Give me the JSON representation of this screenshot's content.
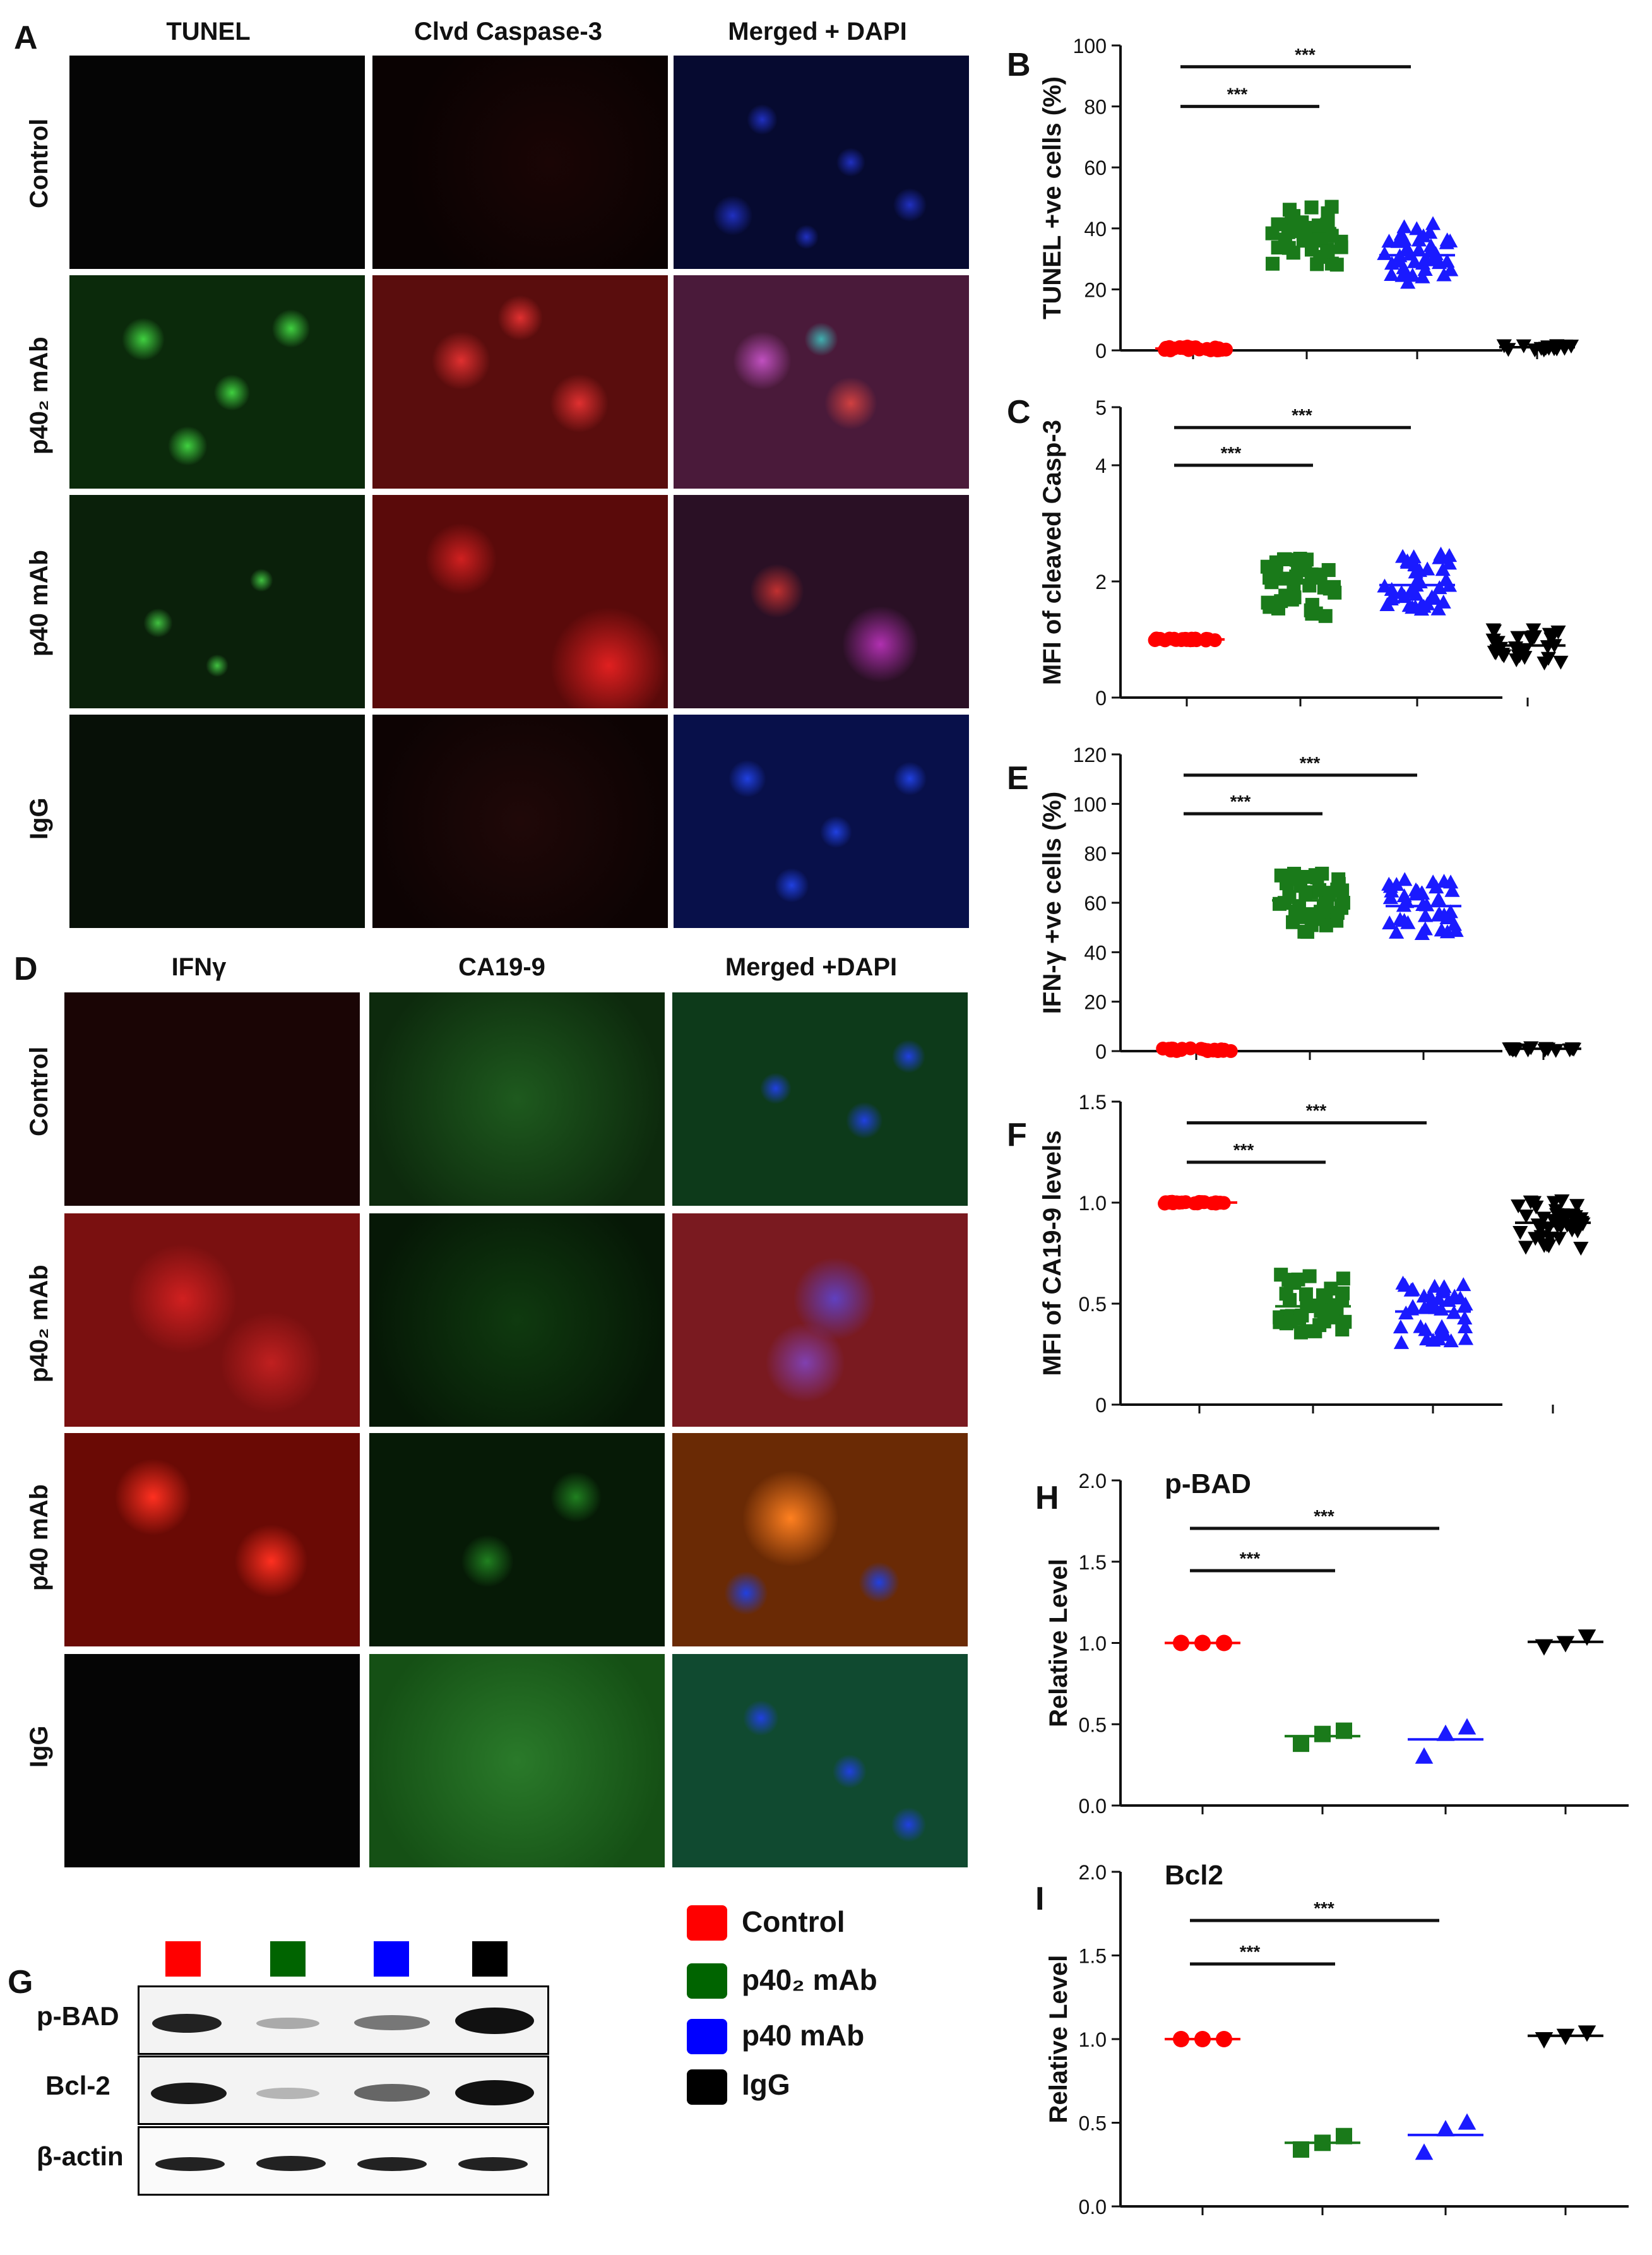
{
  "panels": {
    "A": {
      "letter": "A",
      "columns": [
        "TUNEL",
        "Clvd Caspase-3",
        "Merged + DAPI"
      ],
      "rows": [
        "Control",
        "p40₂ mAb",
        "p40 mAb",
        "IgG"
      ]
    },
    "D": {
      "letter": "D",
      "columns": [
        "IFNγ",
        "CA19-9",
        "Merged +DAPI"
      ],
      "rows": [
        "Control",
        "p40₂ mAb",
        "p40 mAb",
        "IgG"
      ]
    },
    "G": {
      "letter": "G",
      "rows": [
        "p-BAD",
        "Bcl-2",
        "β-actin"
      ],
      "lane_colors": [
        "#ff0000",
        "#006400",
        "#0000ff",
        "#000000"
      ]
    }
  },
  "legend": {
    "items": [
      {
        "label": "Control",
        "color": "#ff0000"
      },
      {
        "label": "p40₂ mAb",
        "color": "#006400"
      },
      {
        "label": "p40 mAb",
        "color": "#0000ff"
      },
      {
        "label": "IgG",
        "color": "#000000"
      }
    ]
  },
  "colors": {
    "control": "#ff0000",
    "p402": "#1a7a1a",
    "p40": "#1a1aff",
    "igg": "#000000"
  },
  "chart_data": [
    {
      "id": "B",
      "letter": "B",
      "type": "scatter",
      "ylabel": "TUNEL  +ve cells (%)",
      "ylim": [
        0,
        100
      ],
      "yticks": [
        "0",
        "20",
        "40",
        "60",
        "80",
        "100"
      ],
      "significance": [
        "***",
        "***"
      ],
      "groups": [
        {
          "mean": 0.5,
          "spread": 1.5,
          "n": 25,
          "marker": "circle"
        },
        {
          "mean": 38,
          "spread": 20,
          "n": 40,
          "marker": "square"
        },
        {
          "mean": 32,
          "spread": 20,
          "n": 40,
          "marker": "triangle-up"
        },
        {
          "mean": 1,
          "spread": 1.5,
          "n": 15,
          "marker": "triangle-down"
        }
      ]
    },
    {
      "id": "C",
      "letter": "C",
      "type": "scatter",
      "ylabel": "MFI of cleaved Casp-3",
      "ylim": [
        0,
        5
      ],
      "yticks": [
        "0",
        "2",
        "4",
        "5"
      ],
      "ytick_values": [
        0,
        2,
        4,
        5
      ],
      "significance": [
        "***",
        "***"
      ],
      "groups": [
        {
          "mean": 1.0,
          "spread": 0.04,
          "n": 25,
          "marker": "circle"
        },
        {
          "mean": 1.9,
          "spread": 1.0,
          "n": 40,
          "marker": "square"
        },
        {
          "mean": 2.0,
          "spread": 1.0,
          "n": 40,
          "marker": "triangle-up"
        },
        {
          "mean": 0.9,
          "spread": 0.6,
          "n": 30,
          "marker": "triangle-down"
        }
      ]
    },
    {
      "id": "E",
      "letter": "E",
      "type": "scatter",
      "ylabel": "IFN-γ +ve cells (%)",
      "ylim": [
        0,
        120
      ],
      "yticks": [
        "0",
        "20",
        "40",
        "60",
        "80",
        "100",
        "120"
      ],
      "significance": [
        "***",
        "***"
      ],
      "groups": [
        {
          "mean": 0.5,
          "spread": 1.5,
          "n": 25,
          "marker": "circle"
        },
        {
          "mean": 60,
          "spread": 24,
          "n": 40,
          "marker": "square"
        },
        {
          "mean": 58,
          "spread": 24,
          "n": 40,
          "marker": "triangle-up"
        },
        {
          "mean": 1,
          "spread": 1.5,
          "n": 15,
          "marker": "triangle-down"
        }
      ]
    },
    {
      "id": "F",
      "letter": "F",
      "type": "scatter",
      "ylabel": "MFI of CA19-9 levels",
      "ylim": [
        0,
        1.5
      ],
      "yticks": [
        "0",
        "0.5",
        "1.0",
        "1.5"
      ],
      "significance": [
        "***",
        "***"
      ],
      "groups": [
        {
          "mean": 1.0,
          "spread": 0.01,
          "n": 25,
          "marker": "circle"
        },
        {
          "mean": 0.5,
          "spread": 0.3,
          "n": 40,
          "marker": "square"
        },
        {
          "mean": 0.45,
          "spread": 0.3,
          "n": 40,
          "marker": "triangle-up"
        },
        {
          "mean": 0.9,
          "spread": 0.25,
          "n": 40,
          "marker": "triangle-down"
        }
      ]
    },
    {
      "id": "H",
      "letter": "H",
      "type": "scatter",
      "title": "p-BAD",
      "ylabel": "Relative Level",
      "ylim": [
        0,
        2.0
      ],
      "yticks": [
        "0.0",
        "0.5",
        "1.0",
        "1.5",
        "2.0"
      ],
      "significance": [
        "***",
        "***"
      ],
      "groups": [
        {
          "values": [
            1.0,
            1.0,
            1.0
          ],
          "marker": "circle"
        },
        {
          "values": [
            0.38,
            0.44,
            0.46
          ],
          "marker": "square"
        },
        {
          "values": [
            0.3,
            0.44,
            0.48
          ],
          "marker": "triangle-up"
        },
        {
          "values": [
            0.98,
            1.0,
            1.04
          ],
          "marker": "triangle-down"
        }
      ]
    },
    {
      "id": "I",
      "letter": "I",
      "type": "scatter",
      "title": "Bcl2",
      "ylabel": "Relative Level",
      "ylim": [
        0,
        2.0
      ],
      "yticks": [
        "0.0",
        "0.5",
        "1.0",
        "1.5",
        "2.0"
      ],
      "significance": [
        "***",
        "***"
      ],
      "groups": [
        {
          "values": [
            1.0,
            1.0,
            1.0
          ],
          "marker": "circle"
        },
        {
          "values": [
            0.34,
            0.38,
            0.42
          ],
          "marker": "square"
        },
        {
          "values": [
            0.32,
            0.46,
            0.5
          ],
          "marker": "triangle-up"
        },
        {
          "values": [
            1.0,
            1.02,
            1.04
          ],
          "marker": "triangle-down"
        }
      ]
    }
  ]
}
